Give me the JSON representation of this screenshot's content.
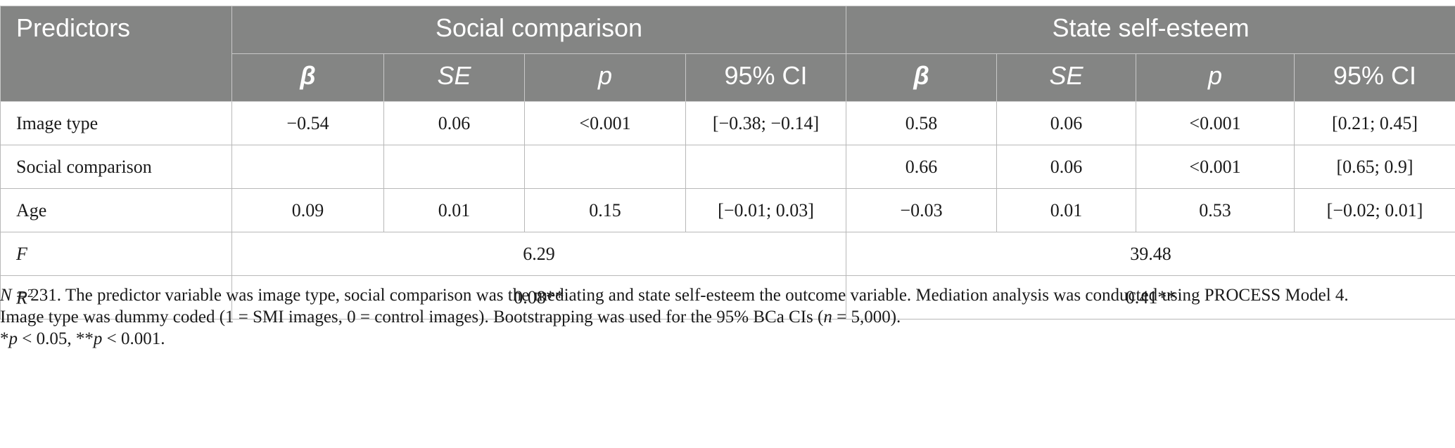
{
  "table": {
    "header": {
      "predictors": "Predictors",
      "group1": "Social comparison",
      "group2": "State self-esteem",
      "beta": "β",
      "se": "SE",
      "p": "p",
      "ci": "95% CI"
    },
    "rows": [
      {
        "label": "Image type",
        "sc": [
          "−0.54",
          "0.06",
          "<0.001",
          "[−0.38; −0.14]"
        ],
        "sse": [
          "0.58",
          "0.06",
          "<0.001",
          "[0.21; 0.45]"
        ]
      },
      {
        "label": "Social comparison",
        "sc": [
          "",
          "",
          "",
          ""
        ],
        "sse": [
          "0.66",
          "0.06",
          "<0.001",
          "[0.65; 0.9]"
        ]
      },
      {
        "label": "Age",
        "sc": [
          "0.09",
          "0.01",
          "0.15",
          "[−0.01; 0.03]"
        ],
        "sse": [
          "−0.03",
          "0.01",
          "0.53",
          "[−0.02; 0.01]"
        ]
      }
    ],
    "f_row": {
      "label": "F",
      "sc": "6.29",
      "sse": "39.48"
    },
    "r2_row": {
      "label": "R",
      "sup": "2",
      "sc": "0.08**",
      "sse": "0.41**"
    }
  },
  "notes": {
    "line1_n": "N",
    "line1_text": " = 231. The predictor variable was image type, social comparison was the mediating and state self-esteem the outcome variable. Mediation analysis was conducted using PROCESS Model 4.",
    "line2_text_a": "Image type was dummy coded (1 = SMI images, 0 = control images). Bootstrapping was used for the 95% BCa CIs (",
    "line2_n": "n",
    "line2_text_b": " = 5,000).",
    "line3_a": "*",
    "line3_p1": "p",
    "line3_b": " < 0.05, **",
    "line3_p2": "p",
    "line3_c": " < 0.001."
  }
}
